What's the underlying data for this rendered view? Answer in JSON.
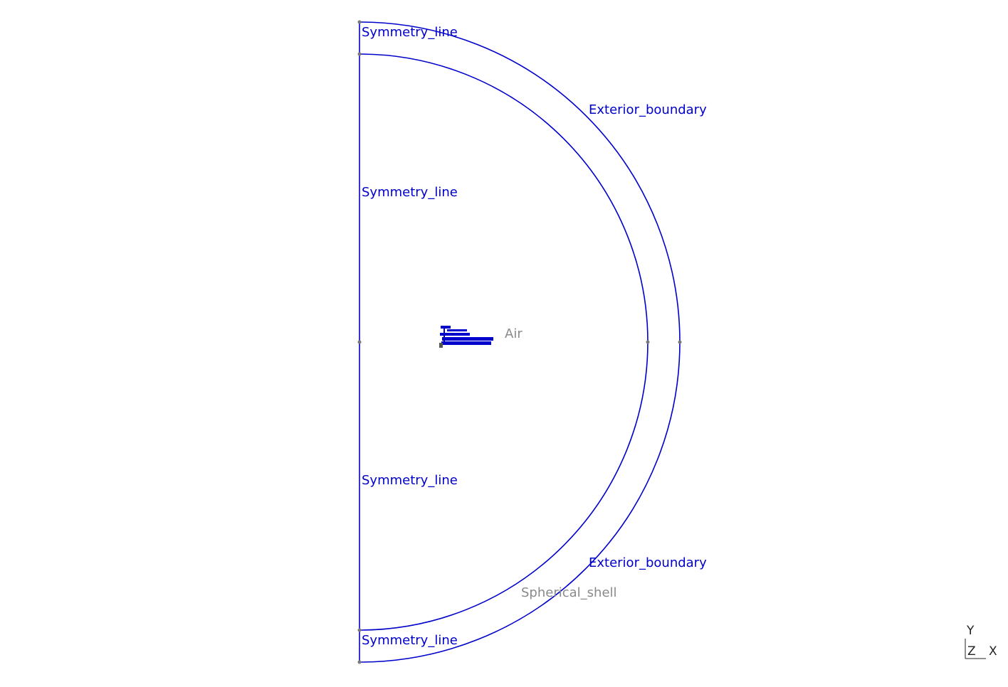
{
  "boundary_labels": {
    "symmetry_top_outer": "Symmetry_line",
    "symmetry_upper": "Symmetry_line",
    "symmetry_lower": "Symmetry_line",
    "symmetry_bottom_outer": "Symmetry_line",
    "exterior_upper": "Exterior_boundary",
    "exterior_lower": "Exterior_boundary"
  },
  "region_labels": {
    "air": "Air",
    "spherical_shell": "Spherical_shell"
  },
  "axis_triad": {
    "y": "Y",
    "z": "Z",
    "x": "X"
  },
  "colors": {
    "boundary": "#0000cc",
    "region_label": "#8a8a8a",
    "vertex": "#7a7a7a",
    "background": "#ffffff"
  }
}
